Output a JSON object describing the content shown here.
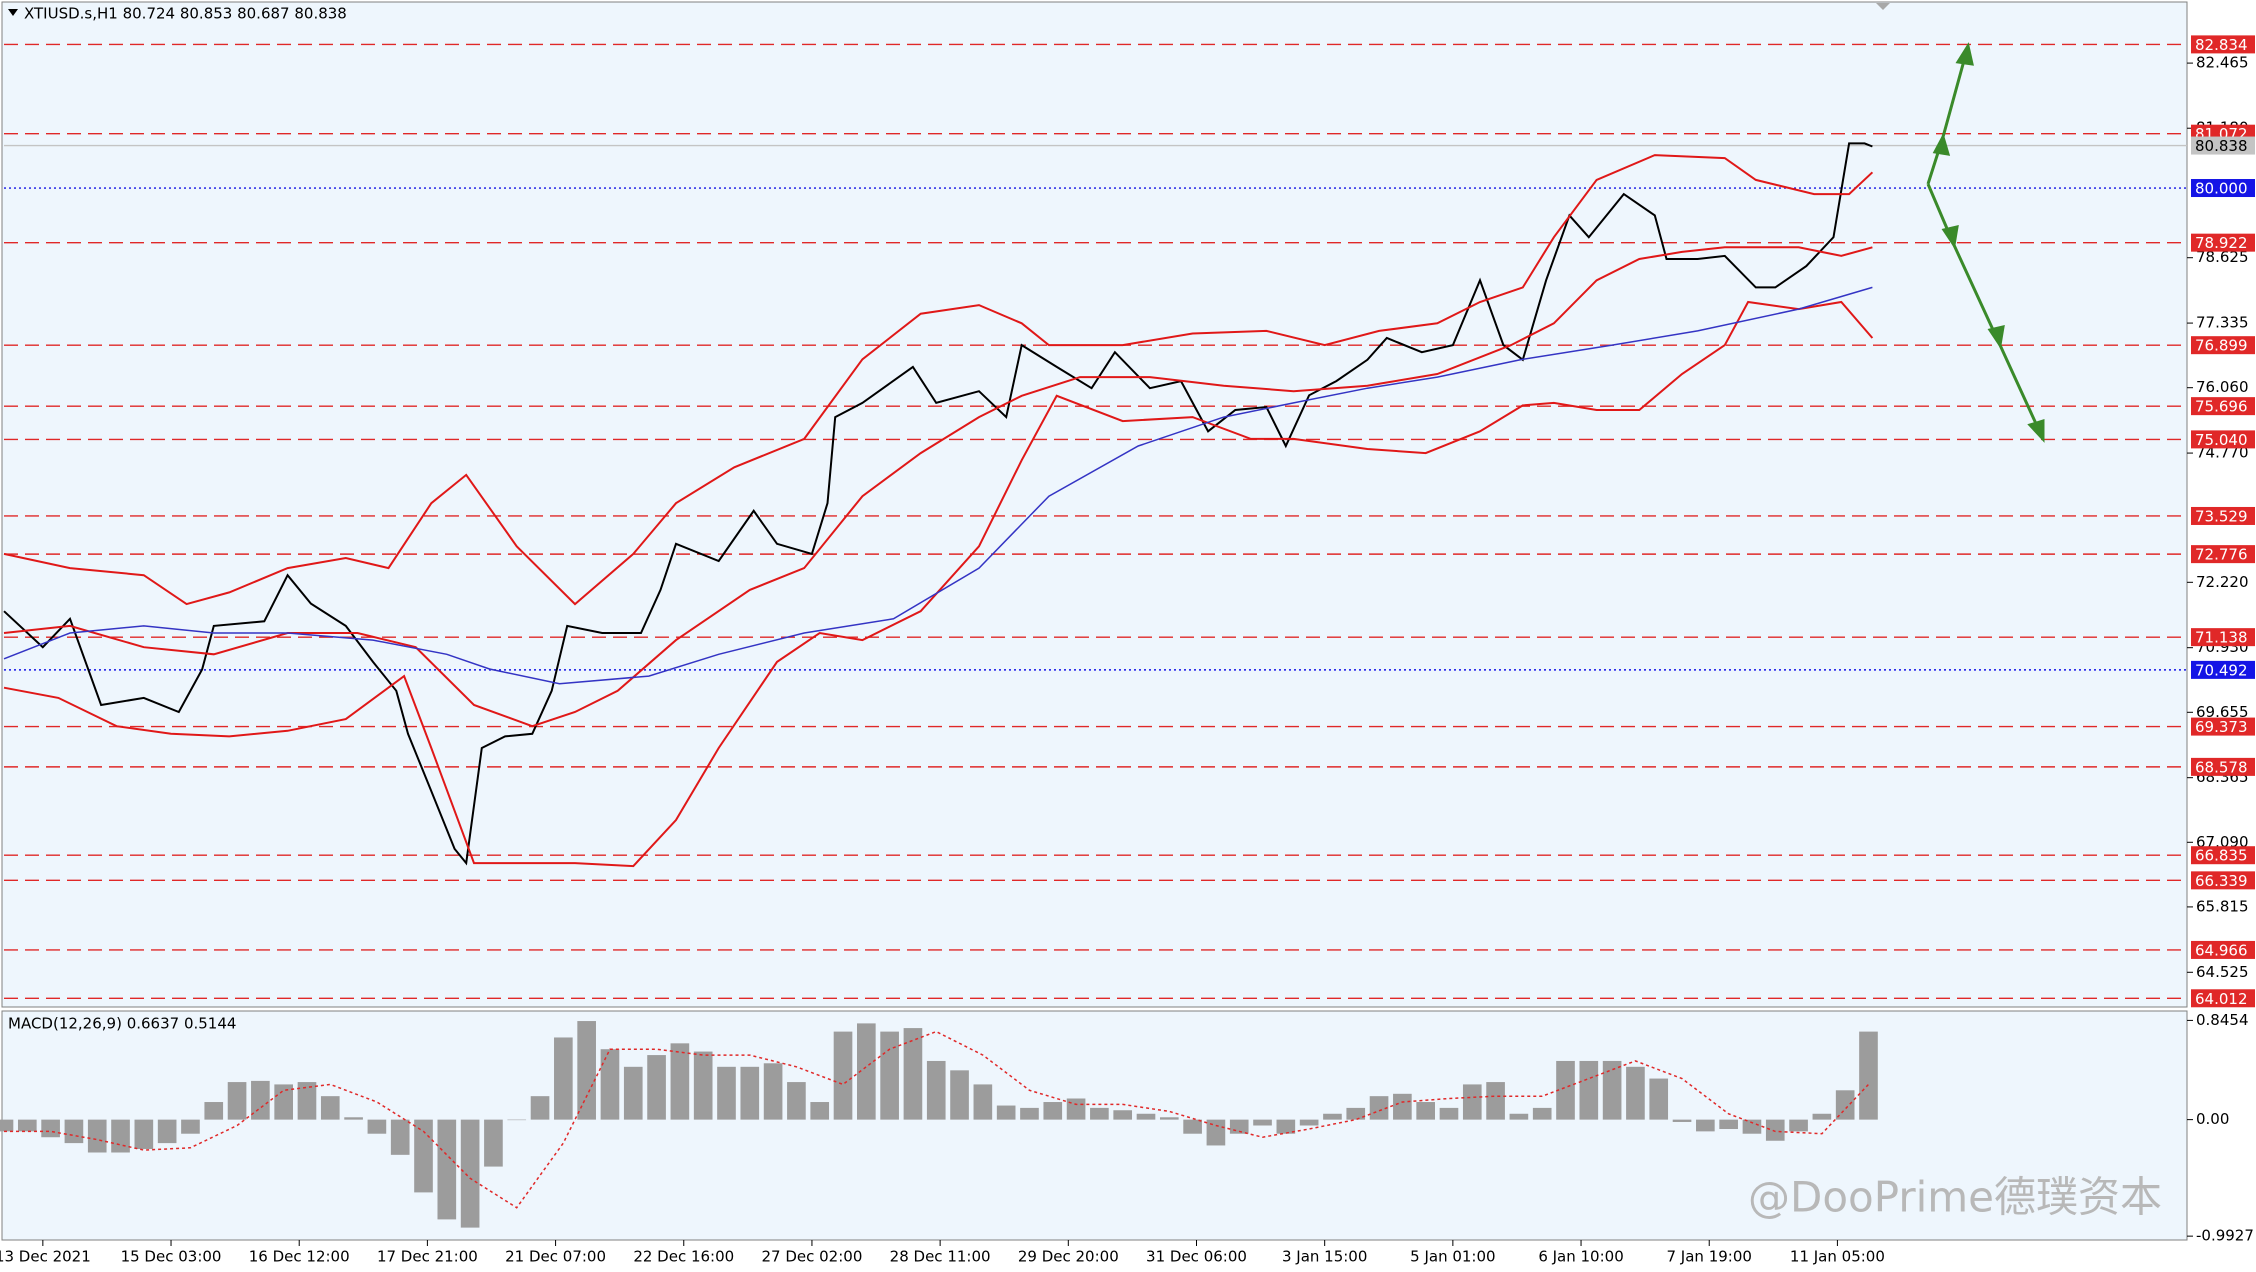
{
  "chart_data": [
    {
      "type": "line",
      "title": "XTIUSD.s,H1  80.724 80.853 80.687 80.838",
      "xlim": [
        0,
        562
      ],
      "ylim": [
        63.84,
        83.71
      ],
      "xticks": [
        {
          "value": 10,
          "label": "13 Dec 2021"
        },
        {
          "value": 43,
          "label": "15 Dec 03:00"
        },
        {
          "value": 76,
          "label": "16 Dec 12:00"
        },
        {
          "value": 109,
          "label": "17 Dec 21:00"
        },
        {
          "value": 142,
          "label": "21 Dec 07:00"
        },
        {
          "value": 175,
          "label": "22 Dec 16:00"
        },
        {
          "value": 208,
          "label": "27 Dec 02:00"
        },
        {
          "value": 241,
          "label": "28 Dec 11:00"
        },
        {
          "value": 274,
          "label": "29 Dec 20:00"
        },
        {
          "value": 307,
          "label": "31 Dec 06:00"
        },
        {
          "value": 340,
          "label": "3 Jan 15:00"
        },
        {
          "value": 373,
          "label": "5 Jan 01:00"
        },
        {
          "value": 406,
          "label": "6 Jan 10:00"
        },
        {
          "value": 439,
          "label": "7 Jan 19:00"
        },
        {
          "value": 472,
          "label": "11 Jan 05:00"
        }
      ],
      "yticks": [
        82.465,
        {
          "value": 81.18,
          "label": "81.180"
        },
        78.625,
        77.335,
        {
          "value": 76.06,
          "label": "76.060"
        },
        {
          "value": 74.77,
          "label": "74.770"
        },
        {
          "value": 72.22,
          "label": "72.220"
        },
        {
          "value": 70.93,
          "label": "70.930"
        },
        69.655,
        68.365,
        {
          "value": 67.09,
          "label": "67.090"
        },
        65.815,
        64.525
      ],
      "series": [
        {
          "color": "#000000",
          "width": 2,
          "x": [
            0,
            10,
            17,
            25,
            36,
            45,
            51,
            54,
            67,
            73,
            79,
            88,
            95,
            101,
            104,
            110,
            116,
            119,
            123,
            129,
            136,
            141,
            145,
            154,
            164,
            169,
            173,
            184,
            193,
            199,
            208,
            212,
            214,
            221,
            234,
            240,
            251,
            258,
            262,
            271,
            280,
            286,
            295,
            303,
            310,
            317,
            325,
            330,
            336,
            343,
            351,
            356,
            365,
            373,
            380,
            386,
            391,
            397,
            403,
            408,
            417,
            425,
            428,
            436,
            443,
            451,
            456,
            464,
            471,
            475,
            479,
            481
          ],
          "values": [
            71.65,
            70.94,
            71.5,
            69.8,
            69.94,
            69.66,
            70.5,
            71.36,
            71.45,
            72.36,
            71.8,
            71.36,
            70.65,
            70.08,
            69.23,
            68.1,
            66.96,
            66.68,
            68.95,
            69.18,
            69.23,
            70.08,
            71.36,
            71.22,
            71.22,
            72.07,
            72.98,
            72.64,
            73.63,
            72.98,
            72.78,
            73.78,
            75.48,
            75.76,
            76.47,
            75.76,
            75.99,
            75.48,
            76.9,
            76.47,
            76.05,
            76.76,
            76.05,
            76.19,
            75.2,
            75.62,
            75.68,
            74.91,
            75.91,
            76.19,
            76.61,
            77.04,
            76.76,
            76.9,
            78.18,
            76.9,
            76.61,
            78.18,
            79.46,
            79.03,
            79.88,
            79.46,
            78.6,
            78.6,
            78.66,
            78.04,
            78.04,
            78.46,
            79.03,
            80.88,
            80.88,
            80.82
          ]
        },
        {
          "color": "#e01818",
          "width": 2,
          "x": [
            0,
            17,
            36,
            47,
            58,
            73,
            88,
            99,
            110,
            119,
            132,
            147,
            162,
            173,
            188,
            206,
            221,
            236,
            251,
            262,
            269,
            288,
            306,
            325,
            340,
            354,
            369,
            380,
            391,
            399,
            410,
            425,
            443,
            451,
            466,
            475,
            481
          ],
          "values": [
            72.78,
            72.5,
            72.36,
            71.79,
            72.02,
            72.5,
            72.7,
            72.5,
            73.78,
            74.34,
            72.93,
            71.79,
            72.78,
            73.78,
            74.49,
            75.05,
            76.62,
            77.52,
            77.69,
            77.33,
            76.9,
            76.9,
            77.13,
            77.18,
            76.9,
            77.18,
            77.33,
            77.75,
            78.04,
            79.03,
            80.16,
            80.65,
            80.59,
            80.16,
            79.88,
            79.88,
            80.31
          ]
        },
        {
          "color": "#e01818",
          "width": 2,
          "x": [
            0,
            17,
            36,
            54,
            73,
            91,
            106,
            121,
            136,
            147,
            158,
            173,
            192,
            206,
            221,
            236,
            251,
            262,
            277,
            295,
            314,
            332,
            351,
            369,
            388,
            399,
            410,
            421,
            432,
            443,
            462,
            473,
            481
          ],
          "values": [
            71.22,
            71.36,
            70.94,
            70.8,
            71.22,
            71.22,
            70.94,
            69.8,
            69.38,
            69.66,
            70.08,
            71.08,
            72.07,
            72.5,
            73.92,
            74.77,
            75.48,
            75.9,
            76.27,
            76.27,
            76.1,
            75.99,
            76.1,
            76.33,
            76.9,
            77.33,
            78.18,
            78.6,
            78.74,
            78.83,
            78.83,
            78.66,
            78.83
          ]
        },
        {
          "color": "#e01818",
          "width": 2,
          "x": [
            0,
            14,
            29,
            43,
            58,
            73,
            88,
            103,
            110,
            121,
            132,
            147,
            162,
            173,
            184,
            199,
            210,
            221,
            236,
            251,
            262,
            271,
            288,
            306,
            321,
            332,
            351,
            366,
            380,
            391,
            399,
            410,
            421,
            432,
            443,
            449,
            462,
            473,
            481
          ],
          "values": [
            70.14,
            69.94,
            69.38,
            69.23,
            69.18,
            69.29,
            69.52,
            70.37,
            68.95,
            66.68,
            66.68,
            66.68,
            66.62,
            67.53,
            68.95,
            70.65,
            71.22,
            71.08,
            71.65,
            72.93,
            74.63,
            75.9,
            75.4,
            75.48,
            75.05,
            75.05,
            74.85,
            74.77,
            75.2,
            75.71,
            75.76,
            75.62,
            75.62,
            76.33,
            76.9,
            77.75,
            77.61,
            77.75,
            77.04
          ]
        },
        {
          "color": "#3434c4",
          "width": 1.5,
          "x": [
            0,
            17,
            36,
            54,
            73,
            95,
            114,
            125,
            143,
            166,
            184,
            206,
            229,
            251,
            269,
            292,
            314,
            332,
            351,
            369,
            391,
            414,
            436,
            462,
            481
          ],
          "values": [
            70.71,
            71.22,
            71.36,
            71.22,
            71.22,
            71.08,
            70.8,
            70.51,
            70.22,
            70.37,
            70.8,
            71.22,
            71.5,
            72.5,
            73.92,
            74.91,
            75.48,
            75.76,
            76.05,
            76.27,
            76.62,
            76.9,
            77.18,
            77.61,
            78.04
          ]
        }
      ],
      "levels": [
        {
          "value": 82.834,
          "color": "#e02828",
          "style": "dashed"
        },
        {
          "value": 81.072,
          "color": "#e02828",
          "style": "dashed"
        },
        {
          "value": 80.838,
          "color": "#c4c4c4",
          "style": "solid"
        },
        {
          "value": 80,
          "label": "80.000",
          "color": "#1414e6",
          "style": "dotted"
        },
        {
          "value": 78.922,
          "color": "#e02828",
          "style": "dashed"
        },
        {
          "value": 76.899,
          "color": "#e02828",
          "style": "dashed"
        },
        {
          "value": 75.696,
          "color": "#e02828",
          "style": "dashed"
        },
        {
          "value": 75.04,
          "label": "75.040",
          "color": "#e02828",
          "style": "dashed"
        },
        {
          "value": 73.529,
          "color": "#e02828",
          "style": "dashed"
        },
        {
          "value": 72.776,
          "color": "#e02828",
          "style": "dashed"
        },
        {
          "value": 71.138,
          "color": "#e02828",
          "style": "dashed"
        },
        {
          "value": 70.492,
          "color": "#1414e6",
          "style": "dotted"
        },
        {
          "value": 69.373,
          "color": "#e02828",
          "style": "dashed"
        },
        {
          "value": 68.578,
          "color": "#e02828",
          "style": "dashed"
        },
        {
          "value": 66.835,
          "color": "#e02828",
          "style": "dashed"
        },
        {
          "value": 66.339,
          "color": "#e02828",
          "style": "dashed"
        },
        {
          "value": 64.966,
          "color": "#e02828",
          "style": "dashed"
        },
        {
          "value": 64.012,
          "color": "#e02828",
          "style": "dashed"
        }
      ],
      "watermark": "@DooPrime德璞资本"
    },
    {
      "type": "bar",
      "label": "MACD(12,26,9) 0.6637 0.5144",
      "xlim": [
        0,
        562
      ],
      "ylim": [
        -1.0,
        0.9
      ],
      "yticks": [
        0.8454,
        {
          "value": 0,
          "label": "0.00"
        },
        -0.9927
      ],
      "series": [
        {
          "type": "bar",
          "color": "#9c9c9c",
          "x": [
            0,
            6,
            12,
            18,
            24,
            30,
            36,
            42,
            48,
            54,
            60,
            66,
            72,
            78,
            84,
            90,
            96,
            102,
            108,
            114,
            120,
            126,
            132,
            138,
            144,
            150,
            156,
            162,
            168,
            174,
            180,
            186,
            192,
            198,
            204,
            210,
            216,
            222,
            228,
            234,
            240,
            246,
            252,
            258,
            264,
            270,
            276,
            282,
            288,
            294,
            300,
            306,
            312,
            318,
            324,
            330,
            336,
            342,
            348,
            354,
            360,
            366,
            372,
            378,
            384,
            390,
            396,
            402,
            408,
            414,
            420,
            426,
            432,
            438,
            444,
            450,
            456,
            462,
            468,
            474,
            480
          ],
          "values": [
            -0.1,
            -0.1,
            -0.15,
            -0.2,
            -0.28,
            -0.28,
            -0.25,
            -0.2,
            -0.12,
            0.15,
            0.32,
            0.33,
            0.3,
            0.32,
            0.2,
            0.02,
            -0.12,
            -0.3,
            -0.62,
            -0.85,
            -0.92,
            -0.4,
            0.0,
            0.2,
            0.7,
            0.84,
            0.6,
            0.45,
            0.55,
            0.65,
            0.58,
            0.45,
            0.45,
            0.48,
            0.32,
            0.15,
            0.75,
            0.82,
            0.75,
            0.78,
            0.5,
            0.42,
            0.3,
            0.12,
            0.1,
            0.15,
            0.18,
            0.1,
            0.08,
            0.05,
            0.02,
            -0.12,
            -0.22,
            -0.12,
            -0.05,
            -0.12,
            -0.05,
            0.05,
            0.1,
            0.2,
            0.22,
            0.15,
            0.1,
            0.3,
            0.32,
            0.05,
            0.1,
            0.5,
            0.5,
            0.5,
            0.45,
            0.35,
            -0.02,
            -0.1,
            -0.08,
            -0.12,
            -0.18,
            -0.1,
            0.05,
            0.25,
            0.75
          ]
        },
        {
          "type": "line",
          "color": "#e02828",
          "style": "dotted",
          "x": [
            0,
            12,
            24,
            36,
            48,
            60,
            72,
            84,
            96,
            108,
            120,
            132,
            144,
            156,
            168,
            180,
            192,
            204,
            216,
            228,
            240,
            252,
            264,
            276,
            288,
            300,
            312,
            324,
            336,
            348,
            360,
            372,
            384,
            396,
            408,
            420,
            432,
            444,
            456,
            468,
            480
          ],
          "values": [
            -0.1,
            -0.1,
            -0.17,
            -0.26,
            -0.24,
            -0.05,
            0.25,
            0.3,
            0.15,
            -0.1,
            -0.5,
            -0.75,
            -0.2,
            0.6,
            0.6,
            0.55,
            0.55,
            0.45,
            0.3,
            0.6,
            0.75,
            0.55,
            0.25,
            0.13,
            0.13,
            0.07,
            -0.05,
            -0.15,
            -0.08,
            0.0,
            0.15,
            0.18,
            0.2,
            0.2,
            0.35,
            0.5,
            0.35,
            0.05,
            -0.1,
            -0.12,
            0.3
          ]
        }
      ]
    }
  ]
}
